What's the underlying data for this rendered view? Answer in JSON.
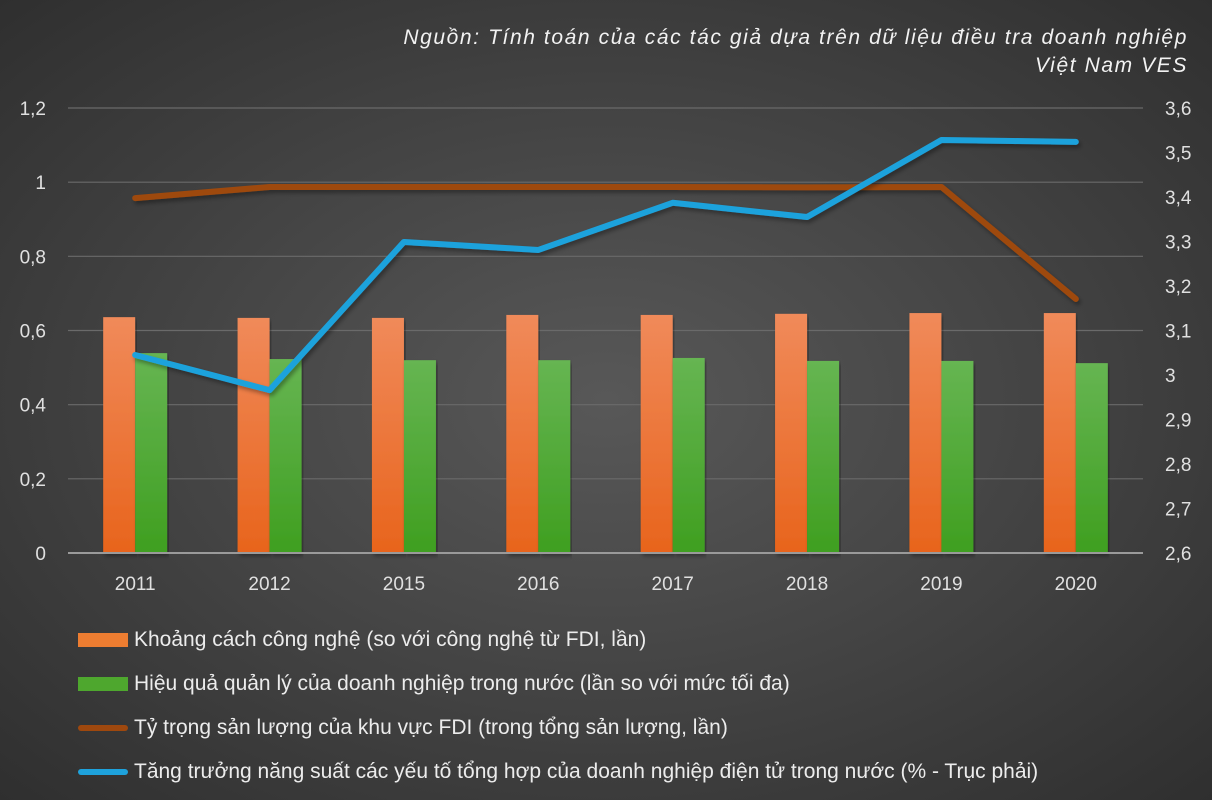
{
  "source": {
    "line1": "Nguồn: Tính toán của các tác giả dựa trên dữ liệu điều tra doanh nghiệp",
    "line2": "Việt Nam VES"
  },
  "axes": {
    "left": {
      "ticks": [
        "1,2",
        "1",
        "0,8",
        "0,6",
        "0,4",
        "0,2",
        "0"
      ]
    },
    "right": {
      "ticks": [
        "3,6",
        "3,5",
        "3,4",
        "3,3",
        "3,2",
        "3,1",
        "3",
        "2,9",
        "2,8",
        "2,7",
        "2,6"
      ]
    }
  },
  "legend": [
    {
      "label": "Khoảng cách công nghệ (so với công nghệ từ FDI, lần)",
      "color": "#ed7d31",
      "kind": "bar"
    },
    {
      "label": "Hiệu quả quản lý của doanh nghiệp trong nước (lần so với mức tối đa)",
      "color": "#4ea72e",
      "kind": "bar"
    },
    {
      "label": "Tỷ trọng sản lượng của khu vực FDI (trong tổng sản lượng, lần)",
      "color": "#9e480e",
      "kind": "line"
    },
    {
      "label": "Tăng trưởng năng suất các yếu tố tổng hợp của doanh nghiệp điện tử trong nước (% - Trục phải)",
      "color": "#1ea2dc",
      "kind": "line"
    }
  ],
  "chart_data": {
    "type": "bar",
    "title": "",
    "subtitle": "Nguồn: Tính toán của các tác giả dựa trên dữ liệu điều tra doanh nghiệp Việt Nam VES",
    "xlabel": "",
    "ylabel": "",
    "categories": [
      "2011",
      "2012",
      "2015",
      "2016",
      "2017",
      "2018",
      "2019",
      "2020"
    ],
    "ylim": [
      0,
      1.2
    ],
    "y2lim": [
      2.6,
      3.6
    ],
    "grid": true,
    "legend_position": "bottom",
    "series": [
      {
        "name": "Khoảng cách công nghệ (so với công nghệ từ FDI, lần)",
        "type": "bar",
        "axis": "left",
        "color": "#ed7d31",
        "values": [
          0.636,
          0.634,
          0.634,
          0.642,
          0.642,
          0.645,
          0.647,
          0.647
        ]
      },
      {
        "name": "Hiệu quả quản lý của doanh nghiệp trong nước (lần so với mức tối đa)",
        "type": "bar",
        "axis": "left",
        "color": "#4ea72e",
        "values": [
          0.539,
          0.523,
          0.52,
          0.52,
          0.526,
          0.518,
          0.518,
          0.512
        ]
      },
      {
        "name": "Tỷ trọng sản lượng của khu vực FDI (trong tổng sản lượng, lần)",
        "type": "line",
        "axis": "left",
        "color": "#9e480e",
        "values": [
          0.957,
          0.987,
          0.987,
          0.987,
          0.987,
          0.986,
          0.987,
          0.685
        ]
      },
      {
        "name": "Tăng trưởng năng suất các yếu tố tổng hợp của doanh nghiệp điện tử trong nước (% - Trục phải)",
        "type": "line",
        "axis": "right",
        "color": "#1ea2dc",
        "values": [
          3.045,
          2.966,
          3.299,
          3.281,
          3.387,
          3.355,
          3.528,
          3.524
        ]
      }
    ]
  }
}
